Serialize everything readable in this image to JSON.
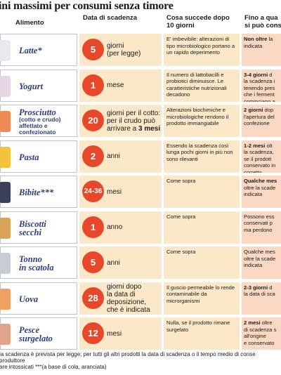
{
  "title": "ini massimi per consumi senza timore",
  "headers": {
    "alimento": "Alimento",
    "scadenza": "Data di scadenza",
    "cosa": "Cosa succede dopo 10 giorni",
    "fino": "Fino a qua si può cons"
  },
  "rows": [
    {
      "name": "Latte*",
      "sub": "",
      "number": "5",
      "scad": "giorni\n(per legge)",
      "cosa": "E' imbevibile: alterazioni di tipo microbiologico portano a un rapido deperimento",
      "fino_bold": "Non oltre",
      "fino": " la\nindicata",
      "img_color": "#e9e9ef"
    },
    {
      "name": "Yogurt",
      "sub": "",
      "number": "1",
      "scad": "mese",
      "cosa": "Il numero di lattobacilli e probiotici diminuisce. Le caratteristiche nutrizionali decadono",
      "fino_bold": "3-4 giorni",
      "fino": " d\nla scadenza i\ntenendo pres\nche i ferment\ncominciano a",
      "img_color": "#e6d7e4"
    },
    {
      "name": "Prosciutto",
      "sub": "(cotto e crudo)\naffettato e\nconfezionato",
      "number": "20",
      "scad": "giorni per il cotto:\nper il crudo può\narrivare a 3 mesi",
      "cosa": "Alterazioni biochimiche e microbiologiche rendono il prodotto immangiabile",
      "fino_bold": "2 giorni",
      "fino": " dop\nl'apertura del\nconfezione",
      "img_color": "#f08a55"
    },
    {
      "name": "Pasta",
      "sub": "",
      "number": "2",
      "scad": "anni",
      "cosa": "Essendo la scadenza così lunga pochi giorni in più non sono rilevanti",
      "fino_bold": "1-2 mesi",
      "fino": " olt\nla scadenza,\nse il prodott\nconservato in\ncorretto",
      "img_color": "#f2c33d"
    },
    {
      "name": "Bibite***",
      "sub": "",
      "number": "24-36",
      "scad": "mesi",
      "cosa": "Come sopra",
      "fino_bold": "Qualche mes",
      "fino": "\noltre la scade\nindicata",
      "img_color": "#3a3f5a"
    },
    {
      "name": "Biscotti\nsecchi",
      "sub": "",
      "number": "1",
      "scad": "anno",
      "cosa": "Come sopra",
      "fino_bold": "",
      "fino": "Possono ess\nconservati p\nma perdono",
      "img_color": "#d8a45a"
    },
    {
      "name": "Tonno\nin scatola",
      "sub": "",
      "number": "5",
      "scad": "anni",
      "cosa": "Come sopra",
      "fino_bold": "",
      "fino": "Qualche mes\noltre la scade\nindicata",
      "img_color": "#c9ccd2"
    },
    {
      "name": "Uova",
      "sub": "",
      "number": "28",
      "scad": "giorni dopo\nla data di\ndeposizione,\nche è indicata",
      "cosa": "Il guscio permeabile lo rende contaminabile da microrganismi",
      "fino_bold": "2-3 giorni",
      "fino": " d\nla data di sca",
      "img_color": "#f0a060"
    },
    {
      "name": "Pesce\nsurgelato",
      "sub": "",
      "number": "12",
      "scad": "mesi",
      "cosa": "Nulla, se il prodotto rimane surgelato",
      "fino_bold": "2 mesi",
      "fino": " oltre\ndi scadenza s\nall'origine\ne conservato",
      "img_color": "#e0a48c"
    }
  ],
  "footnotes": [
    "la scadenza è prevista per legge; per tutti gli altri prodotti la data di scadenza o il tempo medio di conse",
    "produttore",
    "are intossicati   ***(a base di cola, aranciata)"
  ]
}
